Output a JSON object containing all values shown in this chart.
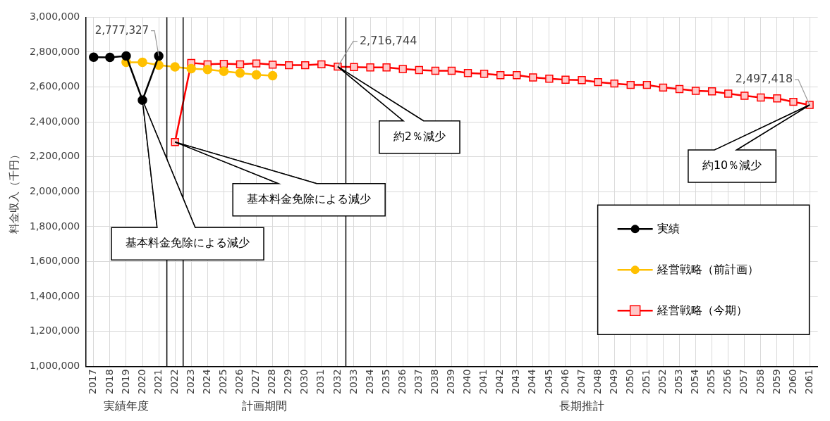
{
  "chart_data": {
    "type": "line",
    "ylabel": "料金収入（千円）",
    "x": [
      2017,
      2018,
      2019,
      2020,
      2021,
      2022,
      2023,
      2024,
      2025,
      2026,
      2027,
      2028,
      2029,
      2030,
      2031,
      2032,
      2033,
      2034,
      2035,
      2036,
      2037,
      2038,
      2039,
      2040,
      2041,
      2042,
      2043,
      2044,
      2045,
      2046,
      2047,
      2048,
      2049,
      2050,
      2051,
      2052,
      2053,
      2054,
      2055,
      2056,
      2057,
      2058,
      2059,
      2060,
      2061
    ],
    "xlim": [
      2016.5,
      2061.5
    ],
    "xticks": [
      2017,
      2018,
      2019,
      2020,
      2021,
      2022,
      2023,
      2024,
      2025,
      2026,
      2027,
      2028,
      2029,
      2030,
      2031,
      2032,
      2033,
      2034,
      2035,
      2036,
      2037,
      2038,
      2039,
      2040,
      2041,
      2042,
      2043,
      2044,
      2045,
      2046,
      2047,
      2048,
      2049,
      2050,
      2051,
      2052,
      2053,
      2054,
      2055,
      2056,
      2057,
      2058,
      2059,
      2060,
      2061
    ],
    "ylim": [
      1000000,
      3000000
    ],
    "yticks": [
      {
        "value": 1000000,
        "label": "1,000,000"
      },
      {
        "value": 1200000,
        "label": "1,200,000"
      },
      {
        "value": 1400000,
        "label": "1,400,000"
      },
      {
        "value": 1600000,
        "label": "1,600,000"
      },
      {
        "value": 1800000,
        "label": "1,800,000"
      },
      {
        "value": 2000000,
        "label": "2,000,000"
      },
      {
        "value": 2200000,
        "label": "2,200,000"
      },
      {
        "value": 2400000,
        "label": "2,400,000"
      },
      {
        "value": 2600000,
        "label": "2,600,000"
      },
      {
        "value": 2800000,
        "label": "2,800,000"
      },
      {
        "value": 3000000,
        "label": "3,000,000"
      }
    ],
    "grid": true,
    "legend": "bottom right",
    "line_style": "solid",
    "series": [
      {
        "name": "実績",
        "color": "#000000",
        "marker": "circle",
        "values": [
          2771000,
          2770000,
          2778000,
          2525000,
          2777327,
          null,
          null,
          null,
          null,
          null,
          null,
          null,
          null,
          null,
          null,
          null,
          null,
          null,
          null,
          null,
          null,
          null,
          null,
          null,
          null,
          null,
          null,
          null,
          null,
          null,
          null,
          null,
          null,
          null,
          null,
          null,
          null,
          null,
          null,
          null,
          null,
          null,
          null,
          null,
          null
        ],
        "value_labels": [
          null,
          null,
          null,
          null,
          "2,777,327",
          null,
          null,
          null,
          null,
          null,
          null,
          null,
          null,
          null,
          null,
          null,
          null,
          null,
          null,
          null,
          null,
          null,
          null,
          null,
          null,
          null,
          null,
          null,
          null,
          null,
          null,
          null,
          null,
          null,
          null,
          null,
          null,
          null,
          null,
          null,
          null,
          null,
          null,
          null,
          null
        ]
      },
      {
        "name": "経営戦略（前計画）",
        "color": "#ffc000",
        "marker": "circle",
        "values": [
          null,
          null,
          2742000,
          2742000,
          2725000,
          2715000,
          2705000,
          2700000,
          2690000,
          2680000,
          2670000,
          2665000,
          null,
          null,
          null,
          null,
          null,
          null,
          null,
          null,
          null,
          null,
          null,
          null,
          null,
          null,
          null,
          null,
          null,
          null,
          null,
          null,
          null,
          null,
          null,
          null,
          null,
          null,
          null,
          null,
          null,
          null,
          null,
          null,
          null
        ]
      },
      {
        "name": "経営戦略（今期）",
        "color": "#ff0000",
        "marker": "square",
        "values": [
          null,
          null,
          null,
          null,
          null,
          2285000,
          2738000,
          2730000,
          2733000,
          2730000,
          2735000,
          2728000,
          2725000,
          2725000,
          2730000,
          2716744,
          2714000,
          2712000,
          2712000,
          2703000,
          2697000,
          2693000,
          2693000,
          2680000,
          2676000,
          2668000,
          2668000,
          2655000,
          2648000,
          2642000,
          2640000,
          2628000,
          2620000,
          2612000,
          2612000,
          2597000,
          2588000,
          2578000,
          2575000,
          2562000,
          2550000,
          2540000,
          2535000,
          2515000,
          2497418
        ],
        "value_labels": [
          null,
          null,
          null,
          null,
          null,
          null,
          null,
          null,
          null,
          null,
          null,
          null,
          null,
          null,
          null,
          "2,716,744",
          null,
          null,
          null,
          null,
          null,
          null,
          null,
          null,
          null,
          null,
          null,
          null,
          null,
          null,
          null,
          null,
          null,
          null,
          null,
          null,
          null,
          null,
          null,
          null,
          null,
          null,
          null,
          null,
          "2,497,418"
        ]
      }
    ],
    "ref_lines": [
      {
        "axis": "x",
        "value": 2021.5,
        "color": "#000000"
      },
      {
        "axis": "x",
        "value": 2022.5,
        "color": "#000000"
      },
      {
        "axis": "x",
        "value": 2032.5,
        "color": "#000000"
      }
    ],
    "annotations": [
      "実績年度",
      "計画期間",
      "長期推計",
      {
        "text": "基本料金免除による減少",
        "x": 2020,
        "y": 2525000
      },
      {
        "text": "基本料金免除による減少",
        "x": 2022,
        "y": 2285000
      },
      {
        "text": "約2％減少",
        "x": 2032,
        "y": 2716744
      },
      {
        "text": "約10％減少",
        "x": 2061,
        "y": 2497418
      }
    ]
  }
}
